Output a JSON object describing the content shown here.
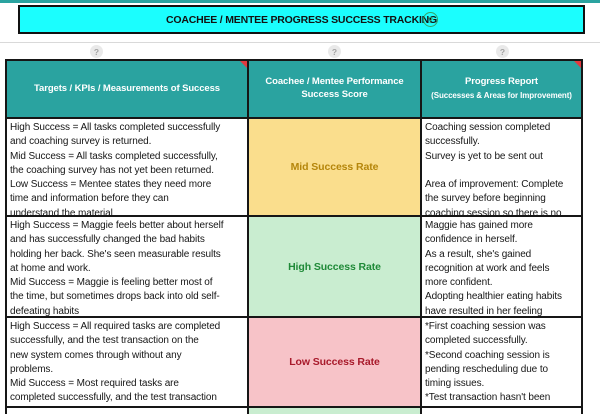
{
  "header": {
    "title": "COACHEE / MENTEE PROGRESS SUCCESS TRACKING",
    "help_glyph": "?"
  },
  "hints": [
    "?",
    "?",
    "?"
  ],
  "columns": [
    {
      "title": "Targets / KPIs / Measurements of Success"
    },
    {
      "title": "Coachee / Mentee Performance\nSuccess Score"
    },
    {
      "title": "Progress Report",
      "subtitle": "(Successes & Areas for Improvement)"
    }
  ],
  "rows": [
    {
      "targets": "High Success = All tasks completed successfully\nand coaching survey is returned.\nMid Success = All tasks completed successfully,\nthe coaching survey has not yet been returned.\nLow Success = Mentee states they need more\ntime and information before they can\nunderstand the material",
      "score": "Mid Success Rate",
      "score_level": "mid",
      "report": "Coaching session completed\nsuccessfully.\nSurvey is yet to be sent out\n\nArea of improvement: Complete\nthe survey before beginning\ncoaching session so there is no"
    },
    {
      "targets": "High Success = Maggie feels better about herself\nand has successfully changed the bad habits\nholding her back. She's seen measurable results\nat home and work.\nMid Success = Maggie is feeling better most of\nthe time, but sometimes drops back into old self-\ndefeating habits",
      "score": "High Success Rate",
      "score_level": "high",
      "report": "Maggie has gained more\nconfidence in herself.\nAs a result, she's gained\nrecognition at work and feels\nmore confident.\nAdopting healthier eating habits\nhave resulted in her feeling"
    },
    {
      "targets": "High Success = All required tasks are completed\nsuccessfully, and the test transaction on the\nnew system comes through without any\nproblems.\nMid Success = Most required tasks are\ncompleted successfully, and the test transaction",
      "score": "Low Success Rate",
      "score_level": "low",
      "report": "*First coaching session was\ncompleted successfully.\n*Second coaching session is\npending rescheduling due to\ntiming issues.\n*Test transaction hasn't been"
    }
  ],
  "colors": {
    "accent_teal": "#2AA3A0",
    "title_bar_cyan": "#1BFEFE",
    "mid_bg": "#FADE8D",
    "mid_text": "#B5860B",
    "high_bg": "#C9EDD0",
    "high_text": "#1F8A38",
    "low_bg": "#F7C3C8",
    "low_text": "#A81A2B",
    "comment_indicator": "#E2383F"
  }
}
